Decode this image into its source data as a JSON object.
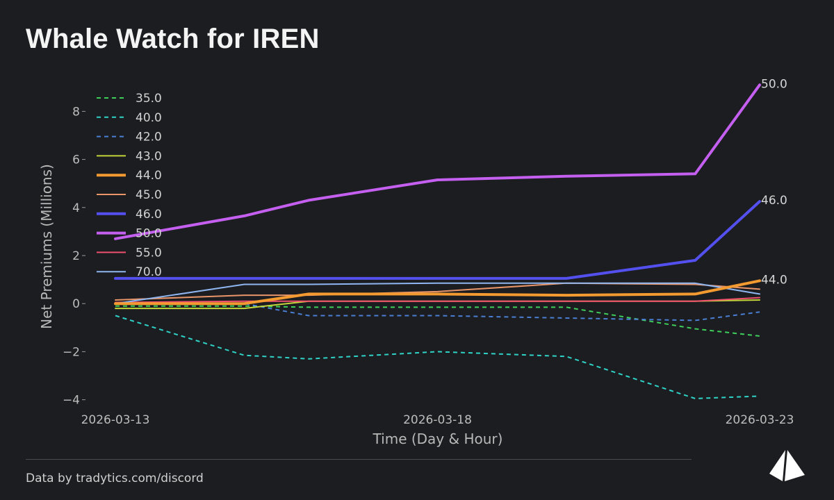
{
  "title": "Whale Watch for IREN",
  "footer": "Data by tradytics.com/discord",
  "chart_data": {
    "type": "line",
    "title": "Whale Watch for IREN",
    "xlabel": "Time (Day & Hour)",
    "ylabel": "Net Premiums (Millions)",
    "x": [
      "2026-03-13",
      "2026-03-14",
      "2026-03-15",
      "2026-03-16",
      "2026-03-17",
      "2026-03-18",
      "2026-03-19",
      "2026-03-20",
      "2026-03-21",
      "2026-03-22",
      "2026-03-23"
    ],
    "xticks": [
      "2026-03-13",
      "2026-03-18",
      "2026-03-23"
    ],
    "ylim": [
      -4.3,
      9.6
    ],
    "yticks": [
      -4,
      -2,
      0,
      2,
      4,
      6,
      8
    ],
    "ytick_labels": [
      "−4",
      "−2",
      "0",
      "2",
      "4",
      "6",
      "8"
    ],
    "legend_position": "top-left",
    "series": [
      {
        "name": "35.0",
        "color": "#3ecf5b",
        "style": "dashed",
        "width": "thin",
        "end_label": false,
        "points": [
          [
            0,
            -0.1
          ],
          [
            2,
            -0.1
          ],
          [
            3,
            -0.15
          ],
          [
            5,
            -0.15
          ],
          [
            7,
            -0.15
          ],
          [
            9,
            -1.05
          ],
          [
            10,
            -1.35
          ]
        ]
      },
      {
        "name": "40.0",
        "color": "#2fd3c8",
        "style": "dashed",
        "width": "thin",
        "end_label": false,
        "points": [
          [
            0,
            -0.5
          ],
          [
            2,
            -2.15
          ],
          [
            3,
            -2.3
          ],
          [
            5,
            -2.0
          ],
          [
            7,
            -2.2
          ],
          [
            9,
            -3.95
          ],
          [
            10,
            -3.85
          ]
        ]
      },
      {
        "name": "42.0",
        "color": "#4a7fd4",
        "style": "dashed",
        "width": "thin",
        "end_label": false,
        "points": [
          [
            0,
            0.0
          ],
          [
            2,
            0.0
          ],
          [
            3,
            -0.5
          ],
          [
            5,
            -0.5
          ],
          [
            7,
            -0.6
          ],
          [
            9,
            -0.7
          ],
          [
            10,
            -0.35
          ]
        ]
      },
      {
        "name": "43.0",
        "color": "#c3d53a",
        "style": "solid",
        "width": "thin",
        "end_label": false,
        "points": [
          [
            0,
            -0.2
          ],
          [
            2,
            -0.2
          ],
          [
            3,
            0.1
          ],
          [
            5,
            0.1
          ],
          [
            7,
            0.1
          ],
          [
            9,
            0.1
          ],
          [
            10,
            0.15
          ]
        ]
      },
      {
        "name": "44.0",
        "color": "#f39a30",
        "style": "solid",
        "width": "thick",
        "end_label": true,
        "points": [
          [
            0,
            0.0
          ],
          [
            2,
            0.0
          ],
          [
            3,
            0.4
          ],
          [
            5,
            0.4
          ],
          [
            7,
            0.35
          ],
          [
            9,
            0.4
          ],
          [
            10,
            0.95
          ]
        ]
      },
      {
        "name": "45.0",
        "color": "#e8956a",
        "style": "solid",
        "width": "thin",
        "end_label": false,
        "points": [
          [
            0,
            0.15
          ],
          [
            2,
            0.35
          ],
          [
            3,
            0.35
          ],
          [
            5,
            0.5
          ],
          [
            7,
            0.85
          ],
          [
            9,
            0.8
          ],
          [
            10,
            0.6
          ]
        ]
      },
      {
        "name": "46.0",
        "color": "#5450f0",
        "style": "solid",
        "width": "thick",
        "end_label": true,
        "points": [
          [
            0,
            1.05
          ],
          [
            2,
            1.05
          ],
          [
            3,
            1.05
          ],
          [
            5,
            1.05
          ],
          [
            7,
            1.05
          ],
          [
            9,
            1.8
          ],
          [
            10,
            4.25
          ]
        ]
      },
      {
        "name": "50.0",
        "color": "#c45ff0",
        "style": "solid",
        "width": "thick",
        "end_label": true,
        "points": [
          [
            0,
            2.7
          ],
          [
            2,
            3.65
          ],
          [
            3,
            4.3
          ],
          [
            5,
            5.15
          ],
          [
            7,
            5.3
          ],
          [
            9,
            5.4
          ],
          [
            10,
            9.1
          ]
        ]
      },
      {
        "name": "55.0",
        "color": "#f0506e",
        "style": "solid",
        "width": "thin",
        "end_label": false,
        "points": [
          [
            0,
            0.05
          ],
          [
            2,
            0.1
          ],
          [
            3,
            0.1
          ],
          [
            5,
            0.1
          ],
          [
            7,
            0.1
          ],
          [
            9,
            0.1
          ],
          [
            10,
            0.25
          ]
        ]
      },
      {
        "name": "70.0",
        "color": "#8fb6f0",
        "style": "solid",
        "width": "thin",
        "end_label": false,
        "points": [
          [
            0,
            0.0
          ],
          [
            2,
            0.8
          ],
          [
            3,
            0.8
          ],
          [
            5,
            0.85
          ],
          [
            7,
            0.85
          ],
          [
            9,
            0.85
          ],
          [
            10,
            0.4
          ]
        ]
      }
    ]
  }
}
